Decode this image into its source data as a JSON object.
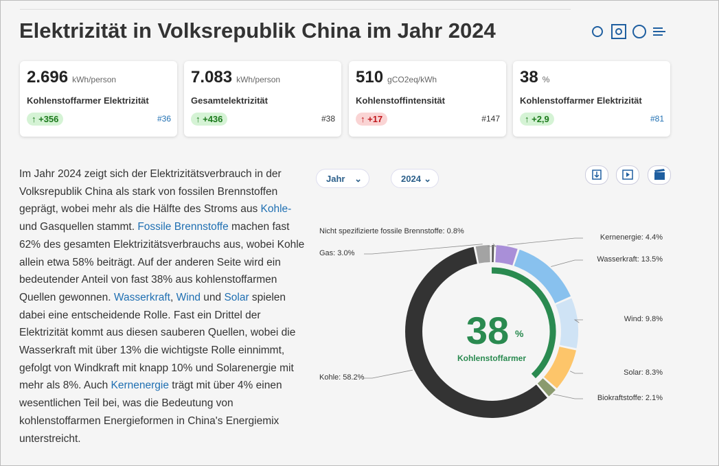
{
  "header": {
    "title": "Elektrizität in Volksrepublik China im Jahr 2024"
  },
  "cards": [
    {
      "value": "2.696",
      "unit": "kWh/person",
      "label": "Kohlenstoffarmer Elektrizität",
      "change": "↑ +356",
      "good": true,
      "rank": "#36",
      "rank_link": true
    },
    {
      "value": "7.083",
      "unit": "kWh/person",
      "label": "Gesamtelektrizität",
      "change": "↑ +436",
      "good": true,
      "rank": "#38",
      "rank_link": false
    },
    {
      "value": "510",
      "unit": "gCO2eq/kWh",
      "label": "Kohlenstoffintensität",
      "change": "↑ +17",
      "good": false,
      "rank": "#147",
      "rank_link": false
    },
    {
      "value": "38",
      "unit": "%",
      "label": "Kohlenstoffarmer Elektrizität",
      "change": "↑ +2,9",
      "good": true,
      "rank": "#81",
      "rank_link": true
    }
  ],
  "paragraph": [
    {
      "text": "Im Jahr 2024 zeigt sich der Elektrizitätsverbrauch in der Volksrepublik China als stark von fossilen Brennstoffen geprägt, wobei mehr als die Hälfte des Stroms aus "
    },
    {
      "text": "Kohle-",
      "link": true
    },
    {
      "text": " und Gasquellen stammt. "
    },
    {
      "text": "Fossile Brennstoffe",
      "link": true
    },
    {
      "text": " machen fast 62% des gesamten Elektrizitätsverbrauchs aus, wobei Kohle allein etwa 58% beiträgt. Auf der anderen Seite wird ein bedeutender Anteil von fast 38% aus kohlenstoffarmen Quellen gewonnen. "
    },
    {
      "text": "Wasserkraft",
      "link": true
    },
    {
      "text": ", "
    },
    {
      "text": "Wind",
      "link": true
    },
    {
      "text": " und "
    },
    {
      "text": "Solar",
      "link": true
    },
    {
      "text": " spielen dabei eine entscheidende Rolle. Fast ein Drittel der Elektrizität kommt aus diesen sauberen Quellen, wobei die Wasserkraft mit über 13% die wichtigste Rolle einnimmt, gefolgt von Windkraft mit knapp 10% und Solarenergie mit mehr als 8%. Auch "
    },
    {
      "text": "Kernenergie",
      "link": true
    },
    {
      "text": " trägt mit über 4% einen wesentlichen Teil bei, was die Bedeutung von kohlenstoffarmen Energieformen in China's Energiemix unterstreicht."
    }
  ],
  "controls": {
    "period": "Jahr",
    "year": "2024"
  },
  "chart_data": {
    "type": "pie",
    "values": [
      4.4,
      13.5,
      9.8,
      8.3,
      2.1,
      58.2,
      3.0,
      0.8
    ],
    "value_labels": [
      "Kernenergie: 4.4%",
      "Wasserkraft: 13.5%",
      "Wind: 9.8%",
      "Solar: 8.3%",
      "Biokraftstoffe: 2.1%",
      "Kohle: 58.2%",
      "Gas: 3.0%",
      "Nicht spezifizierte fossile Brennstoffe: 0.8%"
    ],
    "colors": [
      "#a98fd8",
      "#88c1ee",
      "#cfe3f5",
      "#fdc56a",
      "#8a9a6e",
      "#333333",
      "#a3a3a3",
      "#5a5a5a"
    ],
    "center_value": 38,
    "center_unit": "%",
    "center_label": "Kohlenstoffarmer",
    "center_color": "#2a8a50"
  }
}
